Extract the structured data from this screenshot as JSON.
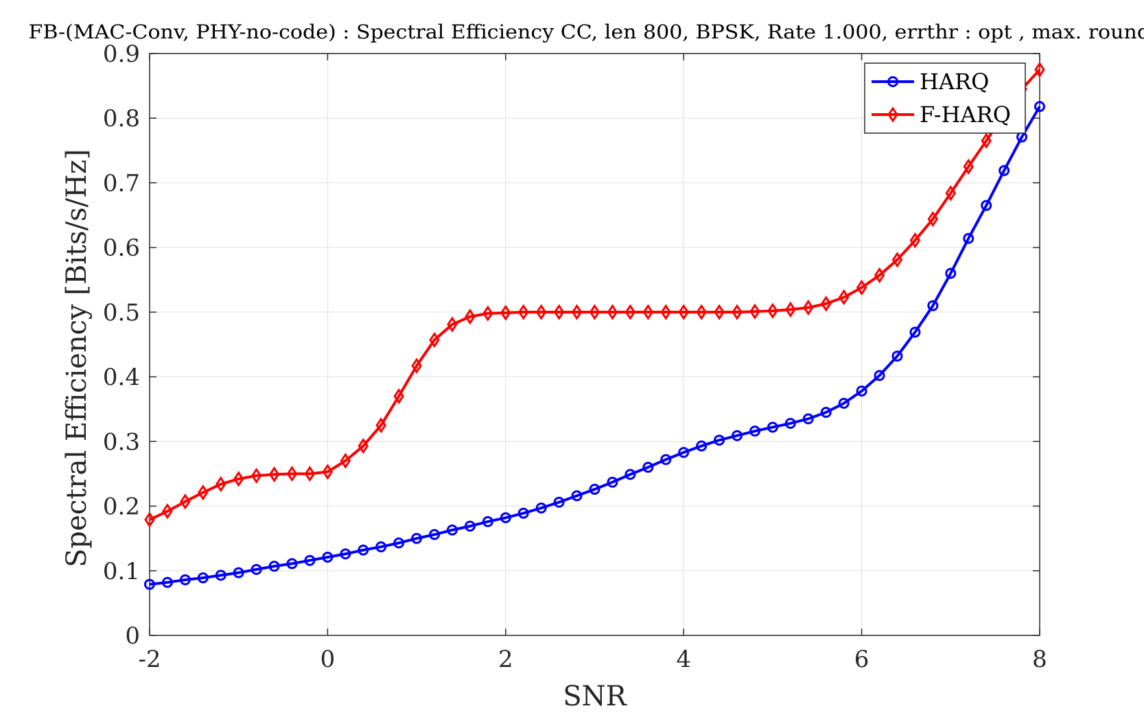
{
  "chart_data": {
    "type": "line",
    "title": "FB-(MAC-Conv, PHY-no-code) : Spectral Efficiency CC, len 800, BPSK, Rate 1.000, errthr : opt , max. rounds",
    "xlabel": "SNR",
    "ylabel": "Spectral Efficiency [Bits/s/Hz]",
    "xlim": [
      -2,
      8
    ],
    "ylim": [
      0,
      0.9
    ],
    "xticks": [
      -2,
      0,
      2,
      4,
      6,
      8
    ],
    "xtick_labels": [
      "-2",
      "0",
      "2",
      "4",
      "6",
      "8"
    ],
    "yticks": [
      0,
      0.1,
      0.2,
      0.3,
      0.4,
      0.5,
      0.6,
      0.7,
      0.8,
      0.9
    ],
    "ytick_labels": [
      "0",
      "0.1",
      "0.2",
      "0.3",
      "0.4",
      "0.5",
      "0.6",
      "0.7",
      "0.8",
      "0.9"
    ],
    "grid": true,
    "legend_position": "top-right",
    "x": [
      -2,
      -1.8,
      -1.6,
      -1.4,
      -1.2,
      -1,
      -0.8,
      -0.6,
      -0.4,
      -0.2,
      0,
      0.2,
      0.4,
      0.6,
      0.8,
      1,
      1.2,
      1.4,
      1.6,
      1.8,
      2,
      2.2,
      2.4,
      2.6,
      2.8,
      3,
      3.2,
      3.4,
      3.6,
      3.8,
      4,
      4.2,
      4.4,
      4.6,
      4.8,
      5,
      5.2,
      5.4,
      5.6,
      5.8,
      6,
      6.2,
      6.4,
      6.6,
      6.8,
      7,
      7.2,
      7.4,
      7.6,
      7.8,
      8
    ],
    "series": [
      {
        "name": "HARQ",
        "color": "#0000ff",
        "marker": "circle",
        "values": [
          0.079,
          0.082,
          0.086,
          0.089,
          0.093,
          0.097,
          0.102,
          0.107,
          0.111,
          0.116,
          0.121,
          0.126,
          0.132,
          0.137,
          0.143,
          0.15,
          0.156,
          0.163,
          0.169,
          0.176,
          0.182,
          0.189,
          0.197,
          0.206,
          0.216,
          0.226,
          0.237,
          0.249,
          0.26,
          0.272,
          0.283,
          0.293,
          0.302,
          0.309,
          0.316,
          0.322,
          0.328,
          0.335,
          0.345,
          0.359,
          0.378,
          0.402,
          0.432,
          0.469,
          0.51,
          0.56,
          0.614,
          0.665,
          0.719,
          0.771,
          0.818
        ]
      },
      {
        "name": "F-HARQ",
        "color": "#ff0000",
        "marker": "diamond",
        "values": [
          0.179,
          0.192,
          0.207,
          0.221,
          0.234,
          0.242,
          0.247,
          0.249,
          0.25,
          0.25,
          0.253,
          0.27,
          0.293,
          0.325,
          0.37,
          0.417,
          0.457,
          0.481,
          0.493,
          0.498,
          0.499,
          0.5,
          0.5,
          0.5,
          0.5,
          0.5,
          0.5,
          0.5,
          0.5,
          0.5,
          0.5,
          0.5,
          0.5,
          0.5,
          0.501,
          0.502,
          0.504,
          0.507,
          0.513,
          0.523,
          0.538,
          0.557,
          0.581,
          0.611,
          0.644,
          0.684,
          0.725,
          0.765,
          0.806,
          0.845,
          0.875
        ]
      }
    ]
  }
}
